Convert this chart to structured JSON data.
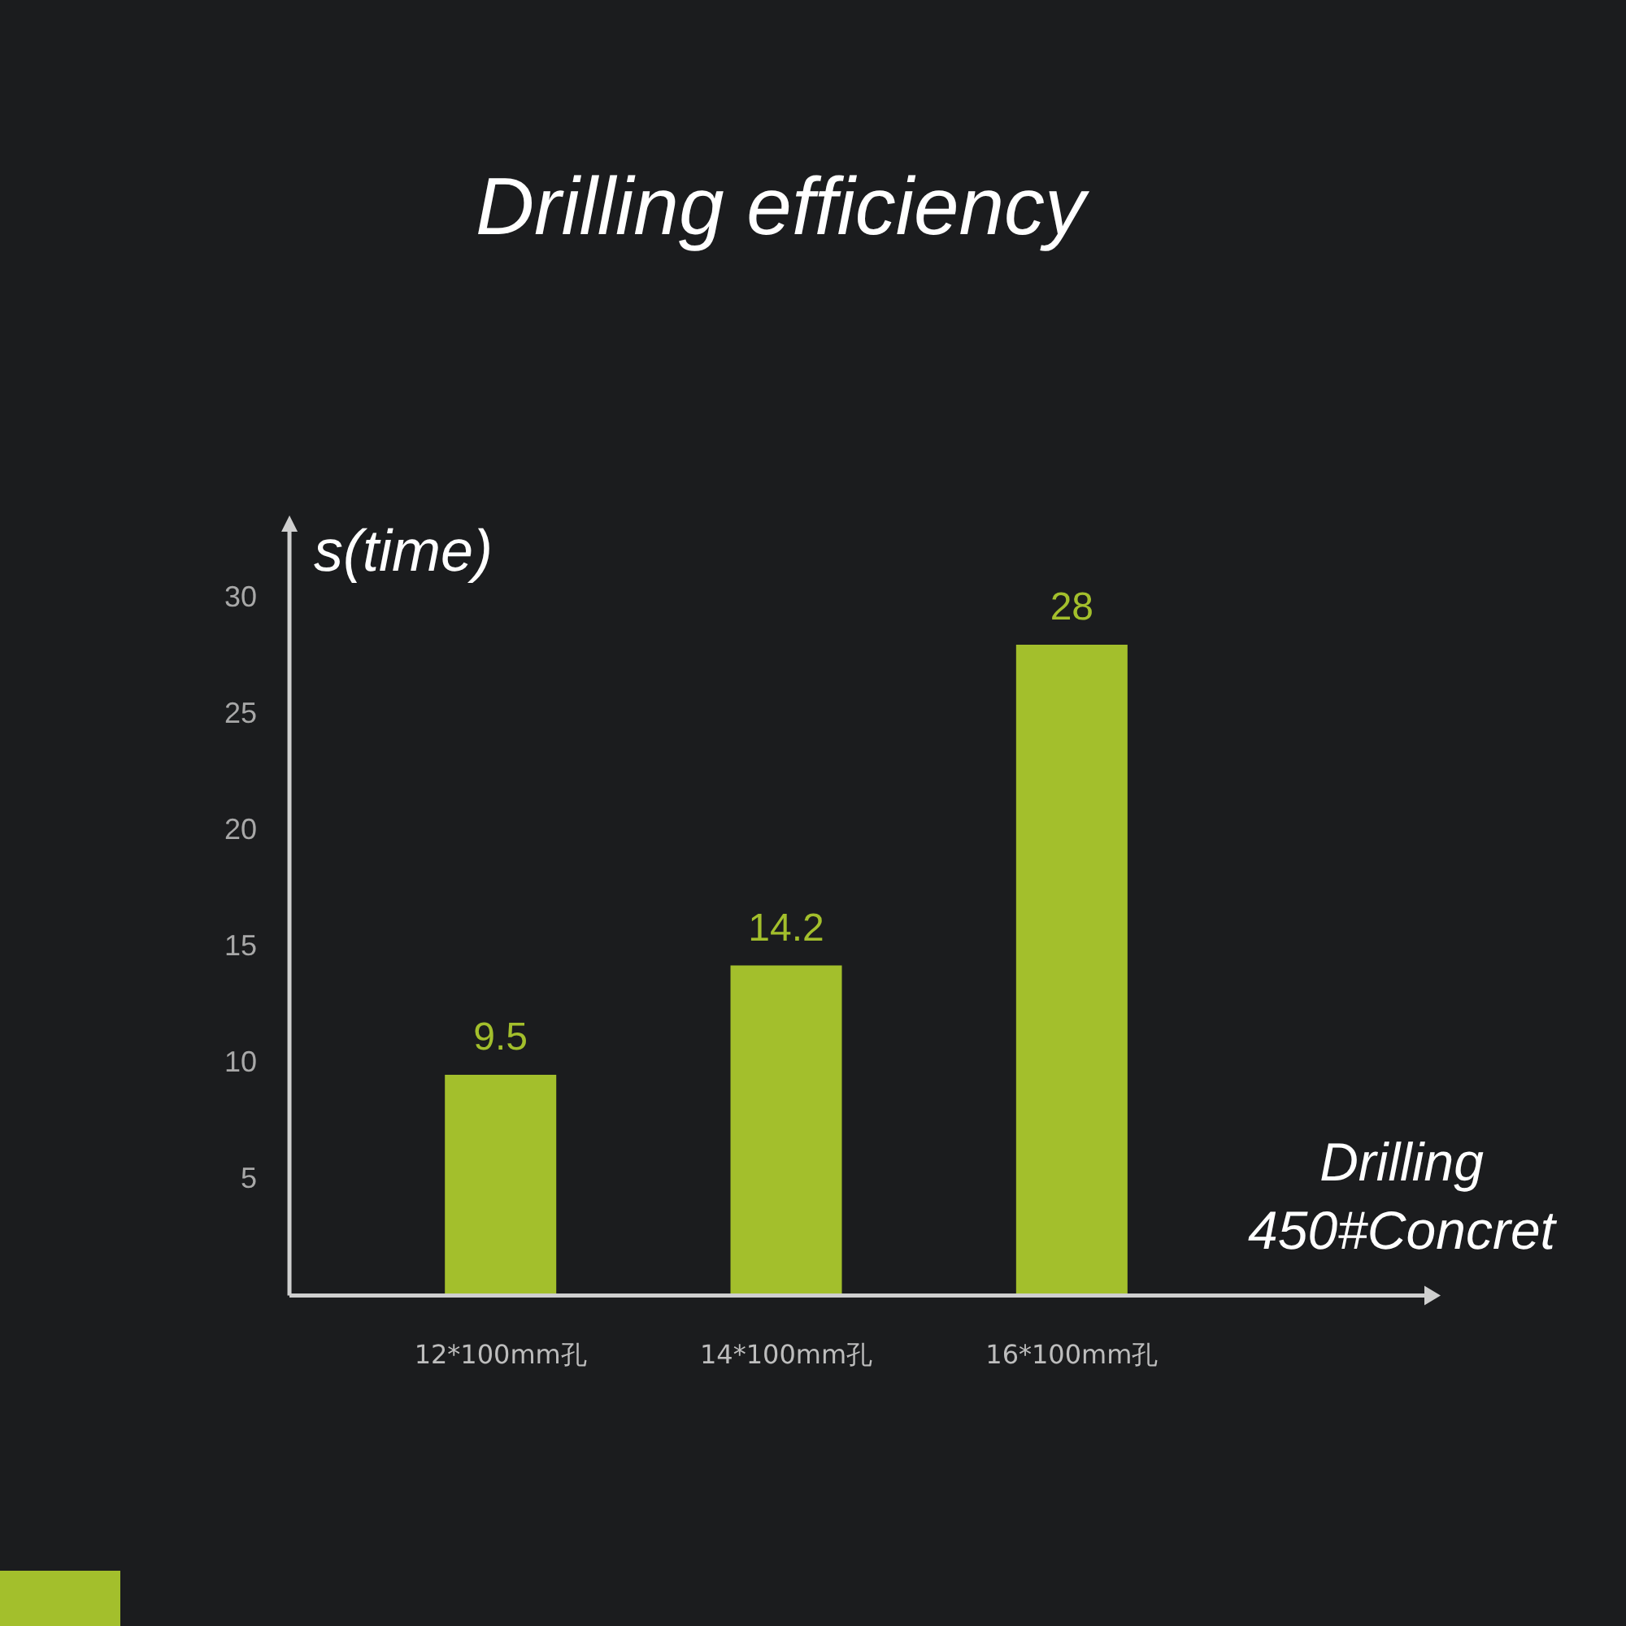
{
  "chart_data": {
    "type": "bar",
    "title": "Drilling efficiency",
    "ylabel": "s(time)",
    "xlabel": "Drilling\n450#Concret",
    "categories": [
      "12*100mm孔",
      "14*100mm孔",
      "16*100mm孔"
    ],
    "values": [
      9.5,
      14.2,
      28
    ],
    "color": "#a3bf2c",
    "ylim": [
      0,
      33
    ],
    "yticks": [
      5,
      10,
      15,
      20,
      25,
      30
    ],
    "grid": false,
    "legend": false,
    "data_labels": true
  }
}
